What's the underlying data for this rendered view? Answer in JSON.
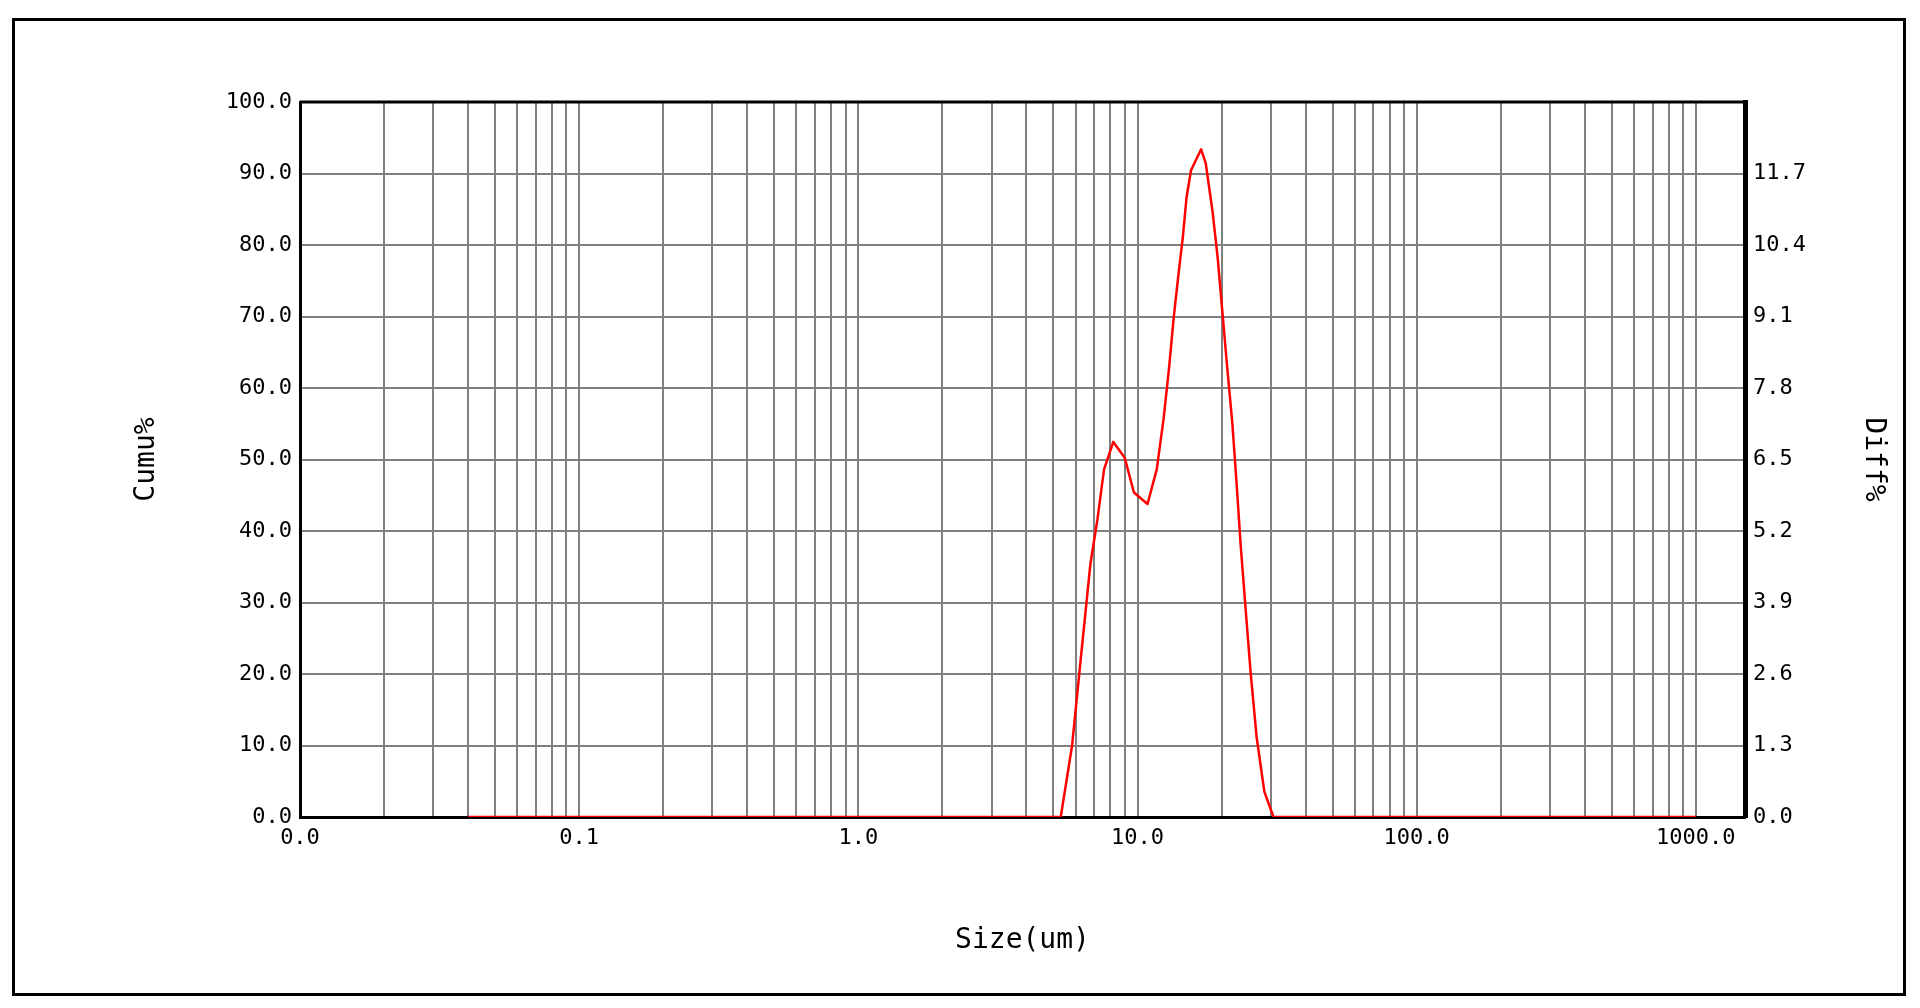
{
  "chart_data": {
    "type": "line",
    "xlabel": "Size(um)",
    "ylabel": "Cumu%",
    "y2label": "Diff%",
    "log": "x",
    "grid": true,
    "marker": "none",
    "xlim": [
      0.01,
      1500
    ],
    "ylim": [
      0,
      100
    ],
    "y2lim": [
      0,
      13
    ],
    "xticks": [
      {
        "value": 0.01,
        "label": "0.0"
      },
      {
        "value": 0.02,
        "label": null
      },
      {
        "value": 0.03,
        "label": null
      },
      {
        "value": 0.04,
        "label": null
      },
      {
        "value": 0.05,
        "label": null
      },
      {
        "value": 0.06,
        "label": null
      },
      {
        "value": 0.07,
        "label": null
      },
      {
        "value": 0.08,
        "label": null
      },
      {
        "value": 0.09,
        "label": null
      },
      0.1,
      {
        "value": 0.2,
        "label": null
      },
      {
        "value": 0.3,
        "label": null
      },
      {
        "value": 0.4,
        "label": null
      },
      {
        "value": 0.5,
        "label": null
      },
      {
        "value": 0.6,
        "label": null
      },
      {
        "value": 0.7,
        "label": null
      },
      {
        "value": 0.8,
        "label": null
      },
      {
        "value": 0.9,
        "label": null
      },
      {
        "value": 1,
        "label": "1.0"
      },
      {
        "value": 2,
        "label": null
      },
      {
        "value": 3,
        "label": null
      },
      {
        "value": 4,
        "label": null
      },
      {
        "value": 5,
        "label": null
      },
      {
        "value": 6,
        "label": null
      },
      {
        "value": 7,
        "label": null
      },
      {
        "value": 8,
        "label": null
      },
      {
        "value": 9,
        "label": null
      },
      {
        "value": 10,
        "label": "10.0"
      },
      {
        "value": 20,
        "label": null
      },
      {
        "value": 30,
        "label": null
      },
      {
        "value": 40,
        "label": null
      },
      {
        "value": 50,
        "label": null
      },
      {
        "value": 60,
        "label": null
      },
      {
        "value": 70,
        "label": null
      },
      {
        "value": 80,
        "label": null
      },
      {
        "value": 90,
        "label": null
      },
      {
        "value": 100,
        "label": "100.0"
      },
      {
        "value": 200,
        "label": null
      },
      {
        "value": 300,
        "label": null
      },
      {
        "value": 400,
        "label": null
      },
      {
        "value": 500,
        "label": null
      },
      {
        "value": 600,
        "label": null
      },
      {
        "value": 700,
        "label": null
      },
      {
        "value": 800,
        "label": null
      },
      {
        "value": 900,
        "label": null
      },
      {
        "value": 1000,
        "label": "1000.0"
      }
    ],
    "yticks": [
      {
        "value": 0,
        "label": "0.0"
      },
      {
        "value": 10,
        "label": "10.0"
      },
      {
        "value": 20,
        "label": "20.0"
      },
      {
        "value": 30,
        "label": "30.0"
      },
      {
        "value": 40,
        "label": "40.0"
      },
      {
        "value": 50,
        "label": "50.0"
      },
      {
        "value": 60,
        "label": "60.0"
      },
      {
        "value": 70,
        "label": "70.0"
      },
      {
        "value": 80,
        "label": "80.0"
      },
      {
        "value": 90,
        "label": "90.0"
      },
      {
        "value": 100,
        "label": "100.0"
      }
    ],
    "y2ticks": [
      {
        "value": 0,
        "label": "0.0"
      },
      1.3,
      2.6,
      3.9,
      5.2,
      6.5,
      7.8,
      9.1,
      10.4,
      11.7
    ],
    "series": [
      {
        "color": "#ff0000",
        "axis": "y2",
        "x": [
          0.04,
          5.31,
          5.83,
          6.29,
          6.78,
          7.18,
          7.59,
          8.19,
          9.0,
          9.71,
          10.86,
          11.72,
          12.4,
          12.97,
          13.48,
          14.0,
          14.54,
          14.98,
          15.55,
          16.9,
          17.55,
          18.57,
          19.37,
          20.12,
          20.89,
          21.86,
          22.7,
          23.39,
          24.3,
          25.41,
          26.7,
          28.47,
          30.7,
          1000
        ],
        "values": [
          0,
          0,
          1.3,
          2.97,
          4.6,
          5.4,
          6.32,
          6.82,
          6.53,
          5.9,
          5.69,
          6.32,
          7.24,
          8.16,
          9.08,
          9.84,
          10.55,
          11.26,
          11.76,
          12.14,
          11.89,
          11.01,
          10.17,
          9.21,
          8.25,
          7.16,
          5.99,
          4.98,
          3.89,
          2.64,
          1.46,
          0.46,
          0,
          0
        ]
      }
    ]
  }
}
